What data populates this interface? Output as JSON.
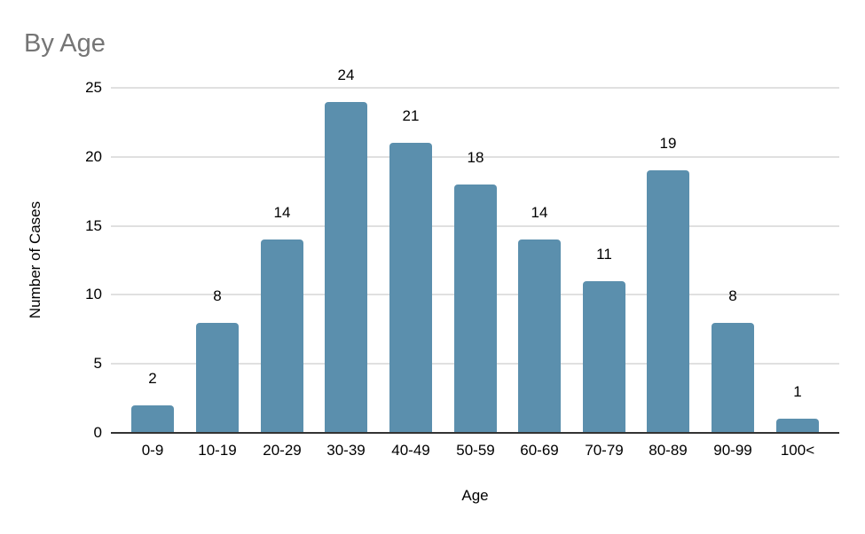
{
  "chart_data": {
    "type": "bar",
    "title": "By Age",
    "categories": [
      "0-9",
      "10-19",
      "20-29",
      "30-39",
      "40-49",
      "50-59",
      "60-69",
      "70-79",
      "80-89",
      "90-99",
      "100<"
    ],
    "values": [
      2,
      8,
      14,
      24,
      21,
      18,
      14,
      11,
      19,
      8,
      1
    ],
    "xlabel": "Age",
    "ylabel": "Number of Cases",
    "ylim": [
      0,
      25
    ],
    "yticks": [
      0,
      5,
      10,
      15,
      20,
      25
    ],
    "grid": true,
    "legend": "none",
    "data_labels": true,
    "bar_color": "#5b8fad",
    "title_color": "#757575",
    "gridline_color": "#e0e0e0",
    "axis_line_color": "#333333",
    "text_color": "#000000",
    "background_color": "#ffffff"
  }
}
